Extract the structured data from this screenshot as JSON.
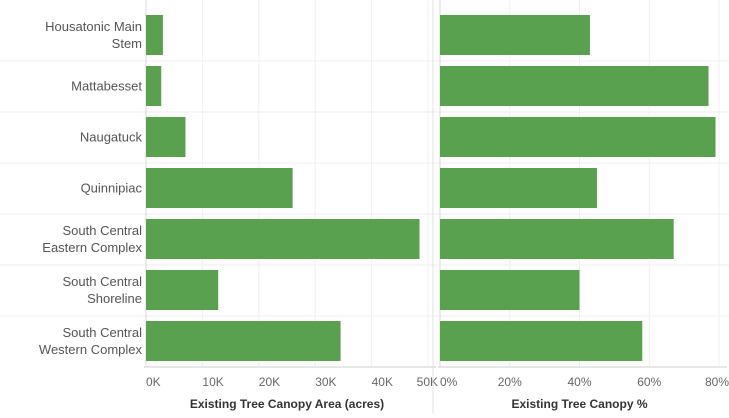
{
  "chart_data": [
    {
      "type": "bar",
      "orientation": "horizontal",
      "categories": [
        [
          "Housatonic Main",
          "Stem"
        ],
        [
          "Mattabesset"
        ],
        [
          "Naugatuck"
        ],
        [
          "Quinnipiac"
        ],
        [
          "South Central",
          "Eastern Complex"
        ],
        [
          "South Central",
          "Shoreline"
        ],
        [
          "South Central",
          "Western Complex"
        ]
      ],
      "values": [
        3000,
        2700,
        7000,
        26000,
        48500,
        12800,
        34500
      ],
      "xlabel": "Existing Tree Canopy Area (acres)",
      "xlim": [
        0,
        50000
      ],
      "xticks": [
        "0K",
        "10K",
        "20K",
        "30K",
        "40K",
        "50K"
      ],
      "grid": true,
      "color": "#59a14f"
    },
    {
      "type": "bar",
      "orientation": "horizontal",
      "categories": [
        [
          "Housatonic Main",
          "Stem"
        ],
        [
          "Mattabesset"
        ],
        [
          "Naugatuck"
        ],
        [
          "Quinnipiac"
        ],
        [
          "South Central",
          "Eastern Complex"
        ],
        [
          "South Central",
          "Shoreline"
        ],
        [
          "South Central",
          "Western Complex"
        ]
      ],
      "values": [
        43,
        77,
        79,
        45,
        67,
        40,
        58
      ],
      "unit": "%",
      "xlabel": "Existing Tree Canopy %",
      "xlim": [
        0,
        80
      ],
      "xticks": [
        "0%",
        "20%",
        "40%",
        "60%",
        "80%"
      ],
      "grid": true,
      "color": "#59a14f"
    }
  ]
}
